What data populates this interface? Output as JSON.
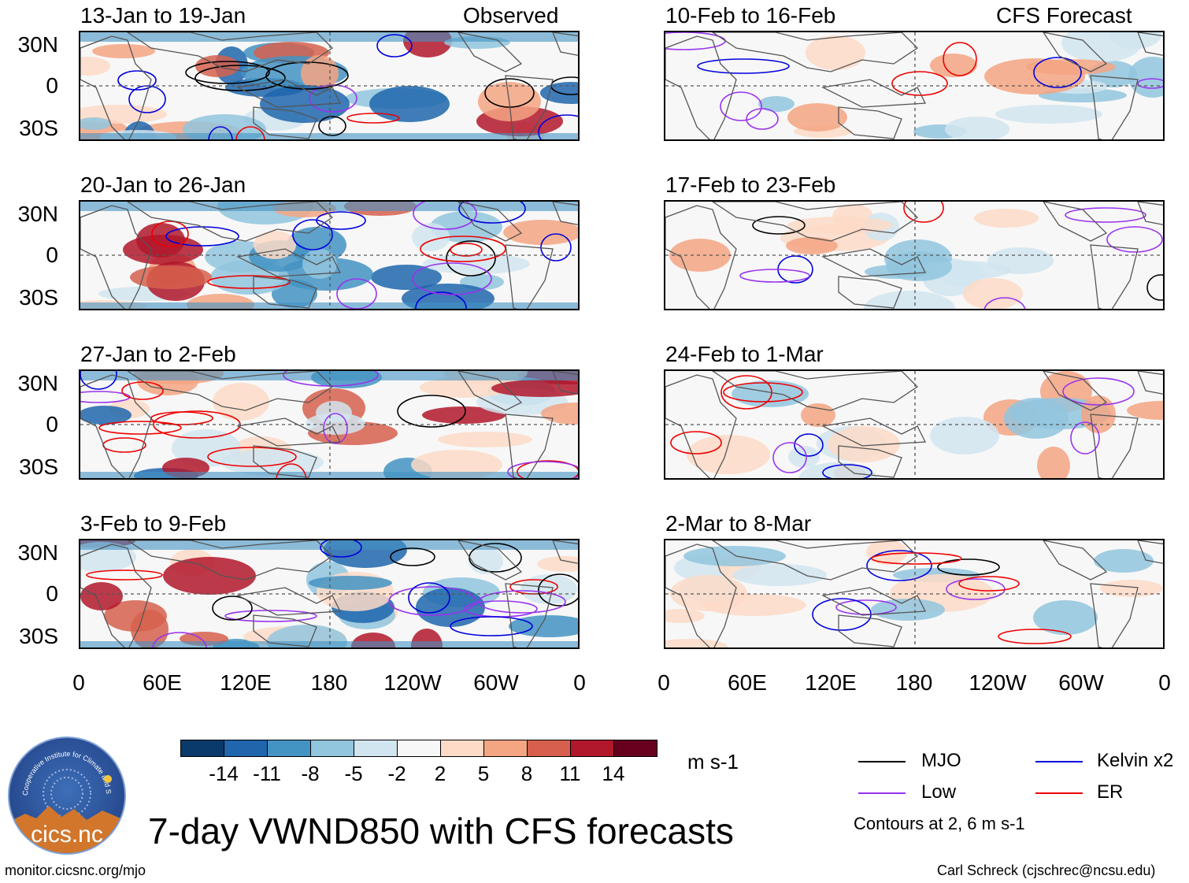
{
  "panels": [
    {
      "period": "13-Jan to 19-Jan",
      "tag": "Observed"
    },
    {
      "period": "20-Jan to 26-Jan",
      "tag": ""
    },
    {
      "period": "27-Jan to 2-Feb",
      "tag": ""
    },
    {
      "period": "3-Feb to 9-Feb",
      "tag": ""
    },
    {
      "period": "10-Feb to 16-Feb",
      "tag": "CFS Forecast"
    },
    {
      "period": "17-Feb to 23-Feb",
      "tag": ""
    },
    {
      "period": "24-Feb to 1-Mar",
      "tag": ""
    },
    {
      "period": "2-Mar to 8-Mar",
      "tag": ""
    }
  ],
  "y_ticks": [
    "30N",
    "0",
    "30S"
  ],
  "x_ticks": [
    "0",
    "60E",
    "120E",
    "180",
    "120W",
    "60W",
    "0"
  ],
  "colorbar": {
    "labels": [
      "-14",
      "-11",
      "-8",
      "-5",
      "-2",
      "2",
      "5",
      "8",
      "11",
      "14"
    ],
    "colors": [
      "#0a3a6b",
      "#1f66ad",
      "#4393c3",
      "#92c5de",
      "#d1e5f0",
      "#f7f7f7",
      "#fddbc7",
      "#f4a582",
      "#d6604d",
      "#b2182b",
      "#67001f"
    ],
    "units": "m s-1"
  },
  "legend": {
    "items": [
      {
        "label": "MJO",
        "color": "#000000"
      },
      {
        "label": "Kelvin x2",
        "color": "#0000dd"
      },
      {
        "label": "Low",
        "color": "#9933ee"
      },
      {
        "label": "ER",
        "color": "#ee0000"
      }
    ],
    "note": "Contours at 2, 6 m s-1"
  },
  "title": "7-day VWND850 with CFS forecasts",
  "footer": {
    "url": "monitor.cicsnc.org/mjo",
    "credit": "Carl Schreck (cjschrec@ncsu.edu)"
  },
  "logo": {
    "text": "cics.nc",
    "ring_text": "Cooperative Institute for Climate and Satellites"
  }
}
